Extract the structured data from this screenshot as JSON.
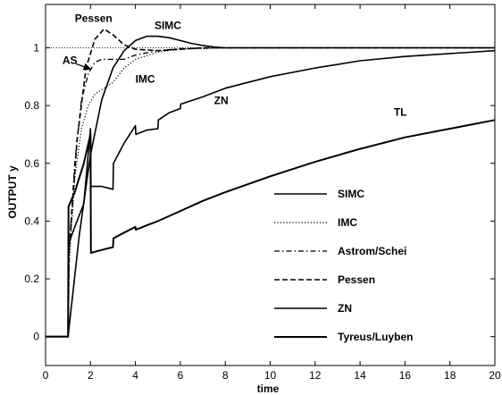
{
  "chart_data": {
    "type": "line",
    "title": "",
    "xlabel": "time",
    "ylabel": "OUTPUT y",
    "xlim": [
      0,
      20
    ],
    "ylim": [
      -0.1,
      1.15
    ],
    "xticks": [
      0,
      2,
      4,
      6,
      8,
      10,
      12,
      14,
      16,
      18,
      20
    ],
    "yticks": [
      0,
      0.2,
      0.4,
      0.6,
      0.8,
      1
    ],
    "grid": false,
    "legend_position": "lower-right",
    "setpoint": 1,
    "series": [
      {
        "name": "SIMC",
        "dash": "solid",
        "width": 1.6,
        "points": [
          [
            0,
            0
          ],
          [
            1,
            0
          ],
          [
            1.5,
            0.35
          ],
          [
            2,
            0.63
          ],
          [
            2.5,
            0.82
          ],
          [
            3,
            0.93
          ],
          [
            3.5,
            0.99
          ],
          [
            4,
            1.025
          ],
          [
            4.5,
            1.04
          ],
          [
            5,
            1.04
          ],
          [
            5.5,
            1.035
          ],
          [
            6,
            1.025
          ],
          [
            6.5,
            1.015
          ],
          [
            7,
            1.008
          ],
          [
            7.5,
            1.003
          ],
          [
            8,
            1.0
          ],
          [
            20,
            1.0
          ]
        ]
      },
      {
        "name": "IMC",
        "dash": "dotted",
        "width": 1.2,
        "points": [
          [
            0,
            0
          ],
          [
            1,
            0
          ],
          [
            1.05,
            0.25
          ],
          [
            1.3,
            0.55
          ],
          [
            1.6,
            0.72
          ],
          [
            1.9,
            0.8
          ],
          [
            2.2,
            0.84
          ],
          [
            2.6,
            0.86
          ],
          [
            3,
            0.88
          ],
          [
            3.5,
            0.93
          ],
          [
            4,
            0.96
          ],
          [
            5,
            0.985
          ],
          [
            6,
            0.995
          ],
          [
            8,
            1.0
          ],
          [
            20,
            1.0
          ]
        ]
      },
      {
        "name": "Astrom/Schei",
        "dash": "dashdot",
        "width": 1.3,
        "points": [
          [
            0,
            0
          ],
          [
            1,
            0
          ],
          [
            1.05,
            0.3
          ],
          [
            1.3,
            0.6
          ],
          [
            1.6,
            0.82
          ],
          [
            1.9,
            0.91
          ],
          [
            2.2,
            0.95
          ],
          [
            2.5,
            0.96
          ],
          [
            3,
            0.96
          ],
          [
            3.5,
            0.96
          ],
          [
            4,
            0.975
          ],
          [
            5,
            0.99
          ],
          [
            6,
            0.997
          ],
          [
            8,
            1.0
          ],
          [
            20,
            1.0
          ]
        ]
      },
      {
        "name": "Pessen",
        "dash": "dashed",
        "width": 1.6,
        "points": [
          [
            0,
            0
          ],
          [
            1,
            0
          ],
          [
            1.05,
            0.3
          ],
          [
            1.4,
            0.68
          ],
          [
            1.8,
            0.93
          ],
          [
            2.2,
            1.03
          ],
          [
            2.6,
            1.065
          ],
          [
            3,
            1.045
          ],
          [
            3.5,
            1.01
          ],
          [
            4,
            0.995
          ],
          [
            5,
            0.99
          ],
          [
            6,
            0.995
          ],
          [
            7,
            1.0
          ],
          [
            20,
            1.0
          ]
        ]
      },
      {
        "name": "ZN",
        "dash": "solid",
        "width": 1.6,
        "points": [
          [
            0,
            0
          ],
          [
            1,
            0
          ],
          [
            1.02,
            0.32
          ],
          [
            1.3,
            0.38
          ],
          [
            1.7,
            0.46
          ],
          [
            2,
            0.72
          ],
          [
            2.02,
            0.52
          ],
          [
            2.5,
            0.52
          ],
          [
            3,
            0.51
          ],
          [
            3.02,
            0.6
          ],
          [
            3.5,
            0.67
          ],
          [
            4,
            0.73
          ],
          [
            4.02,
            0.7
          ],
          [
            4.5,
            0.715
          ],
          [
            5,
            0.72
          ],
          [
            5.02,
            0.75
          ],
          [
            5.5,
            0.775
          ],
          [
            6,
            0.79
          ],
          [
            6.02,
            0.805
          ],
          [
            7,
            0.83
          ],
          [
            8,
            0.86
          ],
          [
            10,
            0.9
          ],
          [
            12,
            0.93
          ],
          [
            14,
            0.955
          ],
          [
            16,
            0.97
          ],
          [
            18,
            0.98
          ],
          [
            20,
            0.99
          ]
        ]
      },
      {
        "name": "Tyreus/Luyben",
        "dash": "solid",
        "width": 2.0,
        "points": [
          [
            0,
            0
          ],
          [
            1,
            0
          ],
          [
            1.02,
            0.45
          ],
          [
            1.3,
            0.5
          ],
          [
            1.7,
            0.6
          ],
          [
            2,
            0.7
          ],
          [
            2.02,
            0.29
          ],
          [
            2.5,
            0.3
          ],
          [
            3,
            0.31
          ],
          [
            3.02,
            0.34
          ],
          [
            3.5,
            0.36
          ],
          [
            4,
            0.38
          ],
          [
            4.02,
            0.37
          ],
          [
            4.5,
            0.385
          ],
          [
            5,
            0.4
          ],
          [
            6,
            0.435
          ],
          [
            7,
            0.47
          ],
          [
            8,
            0.5
          ],
          [
            10,
            0.555
          ],
          [
            12,
            0.605
          ],
          [
            14,
            0.65
          ],
          [
            16,
            0.69
          ],
          [
            18,
            0.72
          ],
          [
            20,
            0.75
          ]
        ]
      }
    ],
    "annotations": [
      {
        "text": "Pessen",
        "x": 1.3,
        "y": 1.09
      },
      {
        "text": "SIMC",
        "x": 4.85,
        "y": 1.065
      },
      {
        "text": "AS",
        "x": 0.75,
        "y": 0.945
      },
      {
        "text": "IMC",
        "x": 4.0,
        "y": 0.88
      },
      {
        "text": "ZN",
        "x": 7.5,
        "y": 0.805
      },
      {
        "text": "TL",
        "x": 15.5,
        "y": 0.765
      }
    ],
    "arrow": {
      "from": [
        1.35,
        0.945
      ],
      "to": [
        2.05,
        0.925
      ]
    }
  }
}
